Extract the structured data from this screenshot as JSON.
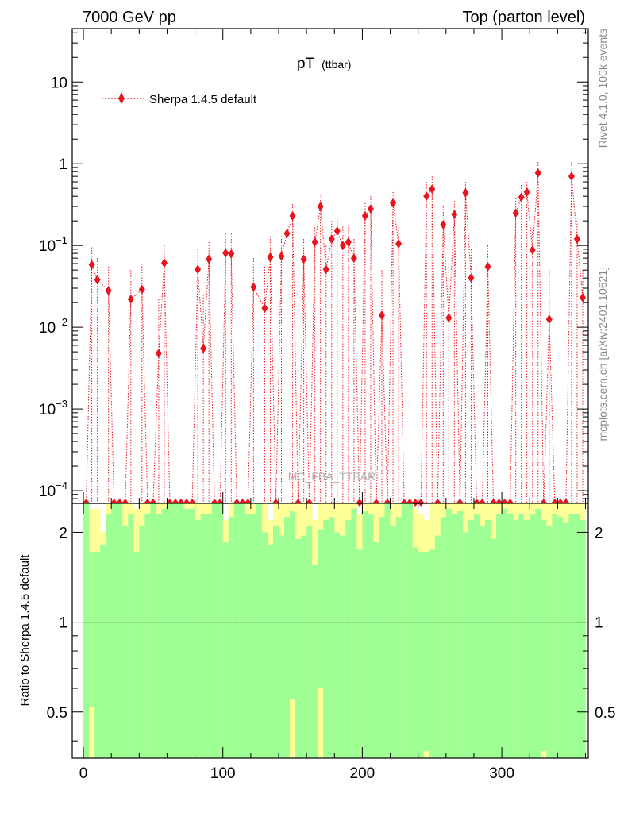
{
  "header": {
    "left": "7000 GeV pp",
    "right": "Top (parton level)"
  },
  "side_text": {
    "rivet": "Rivet 4.1.0,  100k events",
    "mcplots": "mcplots.cern.ch [arXiv:2401.10621]"
  },
  "analysis_label": "MC_FBA_TTBAR",
  "chart_data": [
    {
      "type": "scatter",
      "title": "pT",
      "title_suffix": "(ttbar)",
      "xlabel": "",
      "ylabel": "",
      "xlim": [
        -8,
        362
      ],
      "ylim": [
        7e-05,
        45
      ],
      "yscale": "log",
      "y_ticks": [
        {
          "v": 10,
          "m": "10",
          "e": ""
        },
        {
          "v": 1,
          "m": "1",
          "e": ""
        },
        {
          "v": 0.1,
          "m": "10",
          "e": "−1"
        },
        {
          "v": 0.01,
          "m": "10",
          "e": "−2"
        },
        {
          "v": 0.001,
          "m": "10",
          "e": "−3"
        },
        {
          "v": 0.0001,
          "m": "10",
          "e": "−4"
        }
      ],
      "legend_position": "top-left",
      "legend": "Sherpa 1.4.5 default",
      "series_color": "#e8141e",
      "series": [
        {
          "name": "Sherpa 1.4.5 default",
          "x": [
            6,
            10,
            18,
            34,
            42,
            54,
            58,
            82,
            86,
            90,
            102,
            106,
            122,
            130,
            134,
            142,
            146,
            150,
            158,
            166,
            170,
            174,
            178,
            182,
            186,
            190,
            194,
            202,
            206,
            214,
            222,
            226,
            246,
            250,
            258,
            262,
            266,
            274,
            278,
            290,
            310,
            314,
            318,
            322,
            326,
            334,
            350,
            354,
            358
          ],
          "y": [
            0.058,
            0.038,
            0.028,
            0.022,
            0.029,
            0.0048,
            0.061,
            0.051,
            0.0055,
            0.068,
            0.081,
            0.079,
            0.031,
            0.017,
            0.072,
            0.074,
            0.14,
            0.23,
            0.068,
            0.11,
            0.3,
            0.051,
            0.12,
            0.15,
            0.1,
            0.11,
            0.07,
            0.23,
            0.28,
            0.014,
            0.33,
            0.105,
            0.4,
            0.49,
            0.18,
            0.013,
            0.24,
            0.44,
            0.04,
            0.055,
            0.25,
            0.39,
            0.45,
            0.088,
            0.77,
            0.0125,
            0.7,
            0.12,
            0.023
          ],
          "y_upper": [
            0.095,
            0.07,
            0.055,
            0.05,
            0.06,
            0.022,
            0.1,
            0.09,
            0.025,
            0.11,
            0.14,
            0.14,
            0.07,
            0.055,
            0.13,
            0.13,
            0.22,
            0.32,
            0.12,
            0.18,
            0.42,
            0.1,
            0.2,
            0.22,
            0.17,
            0.18,
            0.12,
            0.33,
            0.4,
            0.05,
            0.45,
            0.18,
            0.6,
            0.7,
            0.3,
            0.06,
            0.35,
            0.6,
            0.09,
            0.1,
            0.38,
            0.55,
            0.6,
            0.16,
            1.05,
            0.05,
            1.05,
            0.2,
            0.05
          ]
        }
      ],
      "zero_bins_x": [
        2,
        22,
        26,
        30,
        46,
        50,
        62,
        66,
        70,
        74,
        78,
        94,
        98,
        110,
        114,
        118,
        138,
        154,
        162,
        198,
        210,
        218,
        230,
        234,
        238,
        242,
        254,
        270,
        282,
        286,
        294,
        298,
        302,
        306,
        330,
        338,
        342,
        346
      ]
    },
    {
      "type": "area",
      "ylabel": "Ratio to Sherpa 1.4.5 default",
      "xlim": [
        -8,
        362
      ],
      "ylim": [
        0.35,
        2.5
      ],
      "yscale": "log",
      "x_ticks": [
        0,
        100,
        200,
        300
      ],
      "y_ticks": [
        0.5,
        1,
        2
      ],
      "reference_line": 1,
      "green_color": "#9eff94",
      "yellow_color": "#ffff99",
      "bin_width": 4,
      "bands": {
        "x": [
          2,
          6,
          10,
          14,
          18,
          22,
          26,
          30,
          34,
          38,
          42,
          46,
          50,
          54,
          58,
          62,
          66,
          70,
          74,
          78,
          82,
          86,
          90,
          94,
          98,
          102,
          106,
          110,
          114,
          118,
          122,
          126,
          130,
          134,
          138,
          142,
          146,
          150,
          154,
          158,
          162,
          166,
          170,
          174,
          178,
          182,
          186,
          190,
          194,
          198,
          202,
          206,
          210,
          214,
          218,
          222,
          226,
          230,
          234,
          238,
          242,
          246,
          250,
          254,
          258,
          262,
          266,
          270,
          274,
          278,
          282,
          286,
          290,
          294,
          298,
          302,
          306,
          310,
          314,
          318,
          322,
          326,
          330,
          334,
          338,
          342,
          346,
          350,
          354,
          358
        ],
        "green_top": [
          2.5,
          1.72,
          1.72,
          1.82,
          2.3,
          2.5,
          2.5,
          2.1,
          2.3,
          1.72,
          2.1,
          2.3,
          2.5,
          2.3,
          2.4,
          2.5,
          2.5,
          2.5,
          2.4,
          2.4,
          2.2,
          2.3,
          2.3,
          2.5,
          2.5,
          1.85,
          2.25,
          2.5,
          2.5,
          2.3,
          2.3,
          2.5,
          2.0,
          1.82,
          2.1,
          1.95,
          2.25,
          2.35,
          1.9,
          1.95,
          2.1,
          1.55,
          2.05,
          2.2,
          2.25,
          2.0,
          1.95,
          2.2,
          2.4,
          1.75,
          2.35,
          2.3,
          1.85,
          2.25,
          2.5,
          2.1,
          2.25,
          2.5,
          2.5,
          1.78,
          1.72,
          1.72,
          1.75,
          1.95,
          2.25,
          2.4,
          2.3,
          2.35,
          2.0,
          2.2,
          2.3,
          2.1,
          2.2,
          1.9,
          2.3,
          2.4,
          2.3,
          2.2,
          2.3,
          2.2,
          2.3,
          2.4,
          2.2,
          2.1,
          2.3,
          2.25,
          2.15,
          2.3,
          2.3,
          2.2
        ],
        "yellow_top": [
          2.5,
          2.4,
          2.4,
          2.0,
          2.5,
          2.5,
          2.5,
          2.5,
          2.5,
          2.4,
          2.5,
          2.5,
          2.5,
          2.5,
          2.5,
          2.5,
          2.5,
          2.5,
          2.5,
          2.5,
          2.5,
          2.5,
          2.5,
          2.5,
          2.5,
          2.2,
          2.5,
          2.5,
          2.5,
          2.5,
          2.5,
          2.5,
          2.5,
          2.2,
          2.5,
          2.5,
          2.5,
          2.5,
          2.5,
          2.5,
          2.5,
          2.2,
          2.5,
          2.5,
          2.5,
          2.5,
          2.5,
          2.5,
          2.5,
          2.3,
          2.5,
          2.5,
          2.5,
          2.5,
          2.5,
          2.5,
          2.5,
          2.5,
          2.5,
          2.4,
          2.3,
          2.2,
          2.5,
          2.5,
          2.5,
          2.5,
          2.5,
          2.5,
          2.5,
          2.5,
          2.5,
          2.5,
          2.5,
          2.5,
          2.5,
          2.5,
          2.5,
          2.5,
          2.5,
          2.5,
          2.5,
          2.5,
          2.5,
          2.5,
          2.5,
          2.5,
          2.5,
          2.5,
          2.5,
          2.5
        ],
        "green_bottom": [
          0.35,
          0.52,
          0.35,
          0.35,
          0.35,
          0.35,
          0.35,
          0.35,
          0.35,
          0.35,
          0.35,
          0.35,
          0.35,
          0.35,
          0.35,
          0.35,
          0.35,
          0.35,
          0.35,
          0.35,
          0.35,
          0.35,
          0.35,
          0.35,
          0.35,
          0.35,
          0.35,
          0.35,
          0.35,
          0.35,
          0.35,
          0.35,
          0.35,
          0.35,
          0.35,
          0.35,
          0.35,
          0.55,
          0.35,
          0.35,
          0.35,
          0.35,
          0.6,
          0.35,
          0.35,
          0.35,
          0.35,
          0.35,
          0.35,
          0.35,
          0.35,
          0.35,
          0.35,
          0.35,
          0.35,
          0.35,
          0.35,
          0.35,
          0.35,
          0.35,
          0.35,
          0.37,
          0.35,
          0.35,
          0.35,
          0.35,
          0.35,
          0.35,
          0.35,
          0.35,
          0.35,
          0.35,
          0.35,
          0.35,
          0.35,
          0.35,
          0.35,
          0.35,
          0.35,
          0.35,
          0.35,
          0.35,
          0.37,
          0.35,
          0.35,
          0.35,
          0.35,
          0.35,
          0.35,
          0.35
        ],
        "yellow_bottom": [
          0.35,
          0.35,
          0.35,
          0.35,
          0.35,
          0.35,
          0.35,
          0.35,
          0.35,
          0.35,
          0.35,
          0.35,
          0.35,
          0.35,
          0.35,
          0.35,
          0.35,
          0.35,
          0.35,
          0.35,
          0.35,
          0.35,
          0.35,
          0.35,
          0.35,
          0.35,
          0.35,
          0.35,
          0.35,
          0.35,
          0.35,
          0.35,
          0.35,
          0.35,
          0.35,
          0.35,
          0.35,
          0.35,
          0.35,
          0.35,
          0.35,
          0.35,
          0.35,
          0.35,
          0.35,
          0.35,
          0.35,
          0.35,
          0.35,
          0.35,
          0.35,
          0.35,
          0.35,
          0.35,
          0.35,
          0.35,
          0.35,
          0.35,
          0.35,
          0.35,
          0.35,
          0.35,
          0.35,
          0.35,
          0.35,
          0.35,
          0.35,
          0.35,
          0.35,
          0.35,
          0.35,
          0.35,
          0.35,
          0.35,
          0.35,
          0.35,
          0.35,
          0.35,
          0.35,
          0.35,
          0.35,
          0.35,
          0.35,
          0.35,
          0.35,
          0.35,
          0.35,
          0.35,
          0.35,
          0.35
        ]
      }
    }
  ]
}
